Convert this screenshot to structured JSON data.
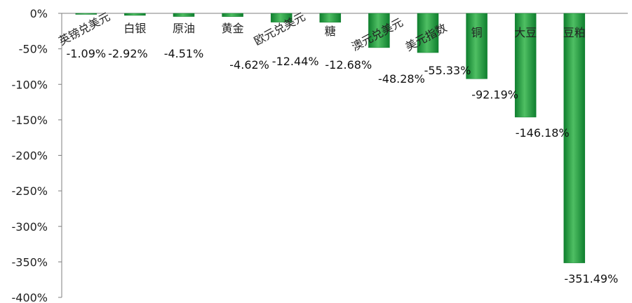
{
  "chart_data": {
    "type": "bar",
    "categories": [
      "英镑兑美元",
      "白银",
      "原油",
      "黄金",
      "欧元兑美元",
      "糖",
      "澳元兑美元",
      "美元指数",
      "铜",
      "大豆",
      "豆粕"
    ],
    "values": [
      -1.09,
      -2.92,
      -4.51,
      -4.62,
      -12.44,
      -12.68,
      -48.28,
      -55.33,
      -92.19,
      -146.18,
      -351.49
    ],
    "data_labels": [
      "-1.09%",
      "-2.92%",
      "-4.51%",
      "-4.62%",
      "-12.44%",
      "-12.68%",
      "-48.28%",
      "-55.33%",
      "-92.19%",
      "-146.18%",
      "-351.49%"
    ],
    "y_ticks": [
      0,
      -50,
      -100,
      -150,
      -200,
      -250,
      -300,
      -350,
      -400
    ],
    "y_tick_labels": [
      "0%",
      "-50%",
      "-100%",
      "-150%",
      "-200%",
      "-250%",
      "-300%",
      "-350%",
      "-400%"
    ],
    "ylim": [
      -400,
      0
    ],
    "grid": false,
    "legend": "none",
    "title": "",
    "xlabel": "",
    "ylabel": "",
    "bar_color_light": "#4fbf63",
    "bar_color_dark": "#0f7f2e",
    "axis_color": "#7f7f7f"
  }
}
